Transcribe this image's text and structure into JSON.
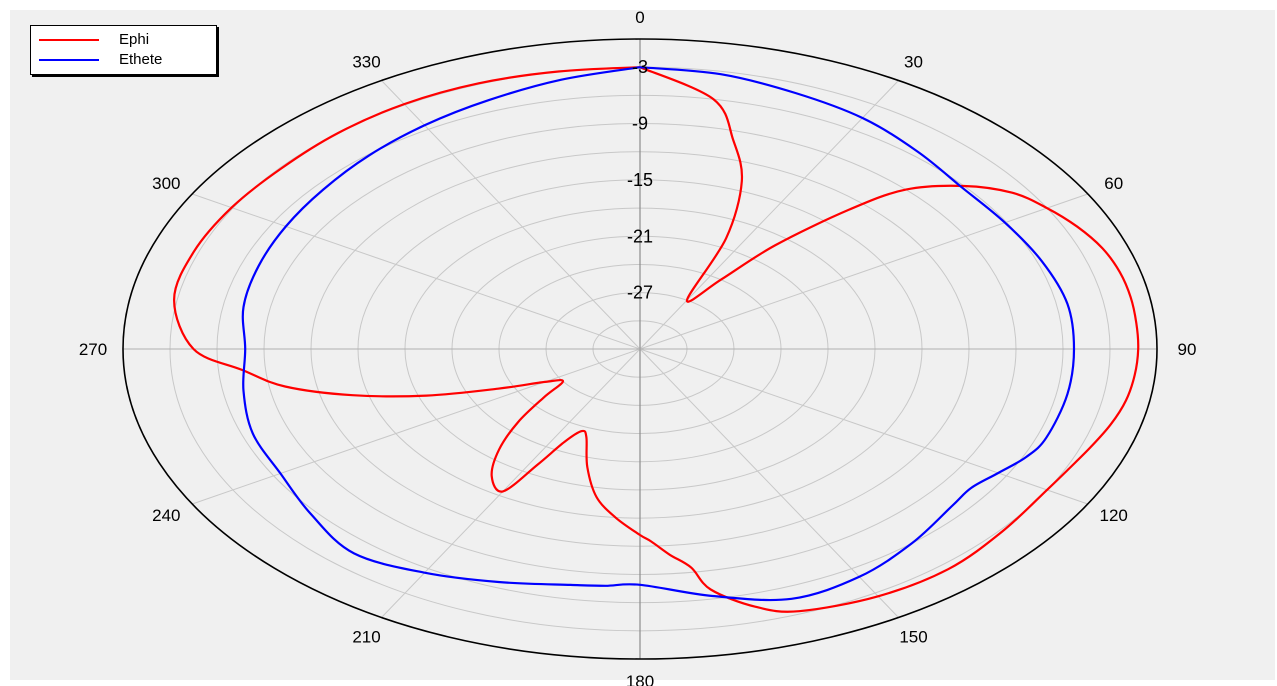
{
  "chart_data": {
    "type": "polar",
    "title": "",
    "angular_axis": {
      "unit": "deg",
      "zero": "top",
      "direction": "clockwise",
      "tick_labels": [
        "0",
        "30",
        "60",
        "90",
        "120",
        "150",
        "180",
        "210",
        "240",
        "270",
        "300",
        "330"
      ]
    },
    "radial_axis": {
      "range": [
        -33,
        0
      ],
      "tick_labels": [
        "-3",
        "-9",
        "-15",
        "-21",
        "-27"
      ],
      "grid_step": 3
    },
    "grid": true,
    "legend_position": "top-left",
    "series": [
      {
        "name": "Ephi",
        "color": "#ff0000",
        "theta": [
          0,
          10,
          15,
          20,
          25,
          30,
          35,
          38,
          42,
          45,
          50,
          55,
          60,
          65,
          70,
          75,
          80,
          85,
          90,
          95,
          100,
          105,
          110,
          115,
          120,
          130,
          140,
          150,
          160,
          165,
          170,
          172,
          175,
          178,
          180,
          185,
          190,
          195,
          200,
          203,
          206,
          208,
          210,
          215,
          220,
          225,
          230,
          235,
          240,
          245,
          250,
          255,
          260,
          265,
          270,
          280,
          290,
          300,
          310,
          320,
          330,
          340,
          350,
          360
        ],
        "r": [
          -3,
          -6,
          -10,
          -14,
          -20,
          -27,
          -24,
          -19,
          -13,
          -9,
          -6,
          -4,
          -3,
          -2.2,
          -1.6,
          -1.3,
          -1.2,
          -1.2,
          -1.2,
          -1.3,
          -1.5,
          -1.9,
          -2.4,
          -2.8,
          -3.0,
          -2.8,
          -2.4,
          -2.6,
          -3.3,
          -4.6,
          -7,
          -9.5,
          -11,
          -12.5,
          -13.2,
          -15,
          -17,
          -20,
          -23,
          -23.5,
          -22,
          -19,
          -15.5,
          -16.5,
          -19,
          -22,
          -25,
          -27,
          -26,
          -23,
          -18.5,
          -14,
          -10,
          -7.5,
          -4.5,
          -2.8,
          -2.7,
          -2.9,
          -3.1,
          -3.0,
          -2.9,
          -2.9,
          -3.0,
          -3
        ]
      },
      {
        "name": "Ethete",
        "color": "#0000ff",
        "theta": [
          0,
          10,
          20,
          30,
          40,
          50,
          60,
          70,
          80,
          90,
          100,
          110,
          115,
          120,
          125,
          130,
          140,
          150,
          160,
          170,
          180,
          185,
          190,
          200,
          210,
          220,
          230,
          240,
          250,
          260,
          270,
          280,
          290,
          300,
          310,
          320,
          330,
          340,
          350,
          360
        ],
        "r": [
          -3,
          -3.3,
          -4,
          -4.6,
          -5.5,
          -6.2,
          -6.1,
          -5.7,
          -5.3,
          -5.3,
          -5.3,
          -5.4,
          -5.8,
          -6.6,
          -7.2,
          -7.0,
          -6.0,
          -5.0,
          -4.7,
          -6.3,
          -7.9,
          -7.7,
          -7.5,
          -6.6,
          -5.5,
          -4.6,
          -5.6,
          -6.5,
          -6.7,
          -7.3,
          -7.8,
          -7.3,
          -7.1,
          -6.9,
          -6.6,
          -6.1,
          -5.5,
          -4.8,
          -3.9,
          -3
        ]
      }
    ]
  }
}
